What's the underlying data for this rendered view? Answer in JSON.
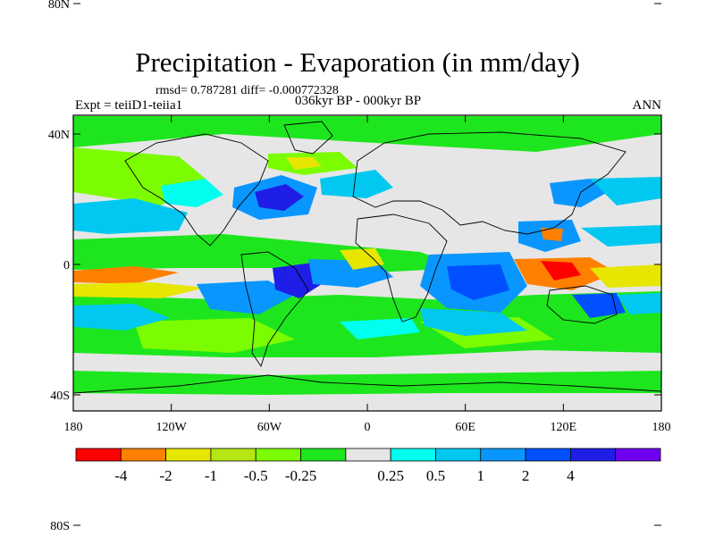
{
  "title": "Precipitation - Evaporation (in mm/day)",
  "stats": "rmsd= 0.787281 diff= -0.000772328",
  "experiment": "Expt = teiiD1-teiia1",
  "period": "036kyr BP - 000kyr BP",
  "season": "ANN",
  "lat_ticks": [
    {
      "value": 80,
      "label": "80N"
    },
    {
      "value": 40,
      "label": "40N"
    },
    {
      "value": 0,
      "label": "0"
    },
    {
      "value": -40,
      "label": "40S"
    },
    {
      "value": -80,
      "label": "80S"
    }
  ],
  "lon_ticks": [
    {
      "value": -180,
      "label": "180"
    },
    {
      "value": -120,
      "label": "120W"
    },
    {
      "value": -60,
      "label": "60W"
    },
    {
      "value": 0,
      "label": "0"
    },
    {
      "value": 60,
      "label": "60E"
    },
    {
      "value": 120,
      "label": "120E"
    },
    {
      "value": 180,
      "label": "180"
    }
  ],
  "colorbar": {
    "colors": [
      "#ff0000",
      "#ff8000",
      "#e6e600",
      "#b4e614",
      "#7cfc00",
      "#1ee61e",
      "#e6e6e6",
      "#00ffee",
      "#00c8f0",
      "#0a96ff",
      "#0050ff",
      "#1e1ee6",
      "#7000f0"
    ],
    "tick_labels": [
      "-4",
      "-2",
      "-1",
      "-0.5",
      "-0.25",
      "0.25",
      "0.5",
      "1",
      "2",
      "4"
    ],
    "label_boundaries": [
      1,
      2,
      3,
      4,
      5,
      7,
      8,
      9,
      10,
      11
    ]
  }
}
